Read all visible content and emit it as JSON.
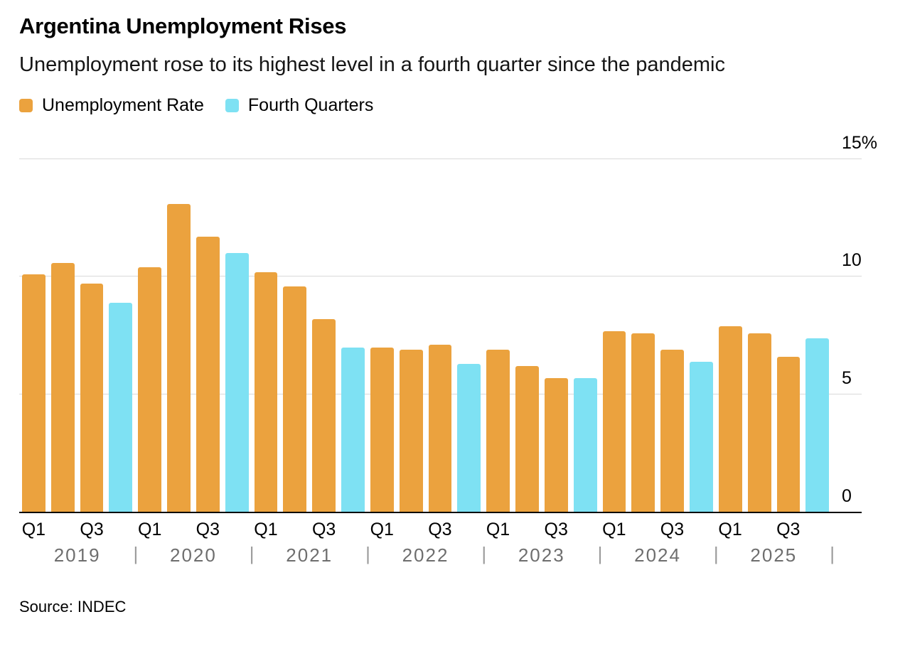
{
  "chart_data": {
    "type": "bar",
    "title": "Argentina Unemployment Rises",
    "subtitle": "Unemployment rose to its highest level in a fourth quarter since the pandemic",
    "source": "Source: INDEC",
    "unit": "%",
    "ylim": [
      0,
      15
    ],
    "grid": true,
    "legend_position": "top-left",
    "yticks": [
      {
        "value": 0,
        "label": "0"
      },
      {
        "value": 5,
        "label": "5"
      },
      {
        "value": 10,
        "label": "10"
      },
      {
        "value": 15,
        "label": "15%"
      }
    ],
    "series": [
      {
        "name": "Unemployment Rate",
        "color": "#EBA23E"
      },
      {
        "name": "Fourth Quarters",
        "color": "#7EE1F3"
      }
    ],
    "q4_highlight_series": "Fourth Quarters",
    "quarter_tick_labels": [
      "Q1",
      "Q3"
    ],
    "year_separator": "|",
    "groups": [
      {
        "year": "2019",
        "quarters": [
          "Q1",
          "Q2",
          "Q3",
          "Q4"
        ],
        "values": [
          10.1,
          10.6,
          9.7,
          8.9
        ]
      },
      {
        "year": "2020",
        "quarters": [
          "Q1",
          "Q2",
          "Q3",
          "Q4"
        ],
        "values": [
          10.4,
          13.1,
          11.7,
          11.0
        ]
      },
      {
        "year": "2021",
        "quarters": [
          "Q1",
          "Q2",
          "Q3",
          "Q4"
        ],
        "values": [
          10.2,
          9.6,
          8.2,
          7.0
        ]
      },
      {
        "year": "2022",
        "quarters": [
          "Q1",
          "Q2",
          "Q3",
          "Q4"
        ],
        "values": [
          7.0,
          6.9,
          7.1,
          6.3
        ]
      },
      {
        "year": "2023",
        "quarters": [
          "Q1",
          "Q2",
          "Q3",
          "Q4"
        ],
        "values": [
          6.9,
          6.2,
          5.7,
          5.7
        ]
      },
      {
        "year": "2024",
        "quarters": [
          "Q1",
          "Q2",
          "Q3",
          "Q4"
        ],
        "values": [
          7.7,
          7.6,
          6.9,
          6.4
        ]
      },
      {
        "year": "2025",
        "quarters": [
          "Q1",
          "Q2",
          "Q3",
          "Q4"
        ],
        "values": [
          7.9,
          7.6,
          6.6,
          7.4
        ]
      }
    ]
  }
}
